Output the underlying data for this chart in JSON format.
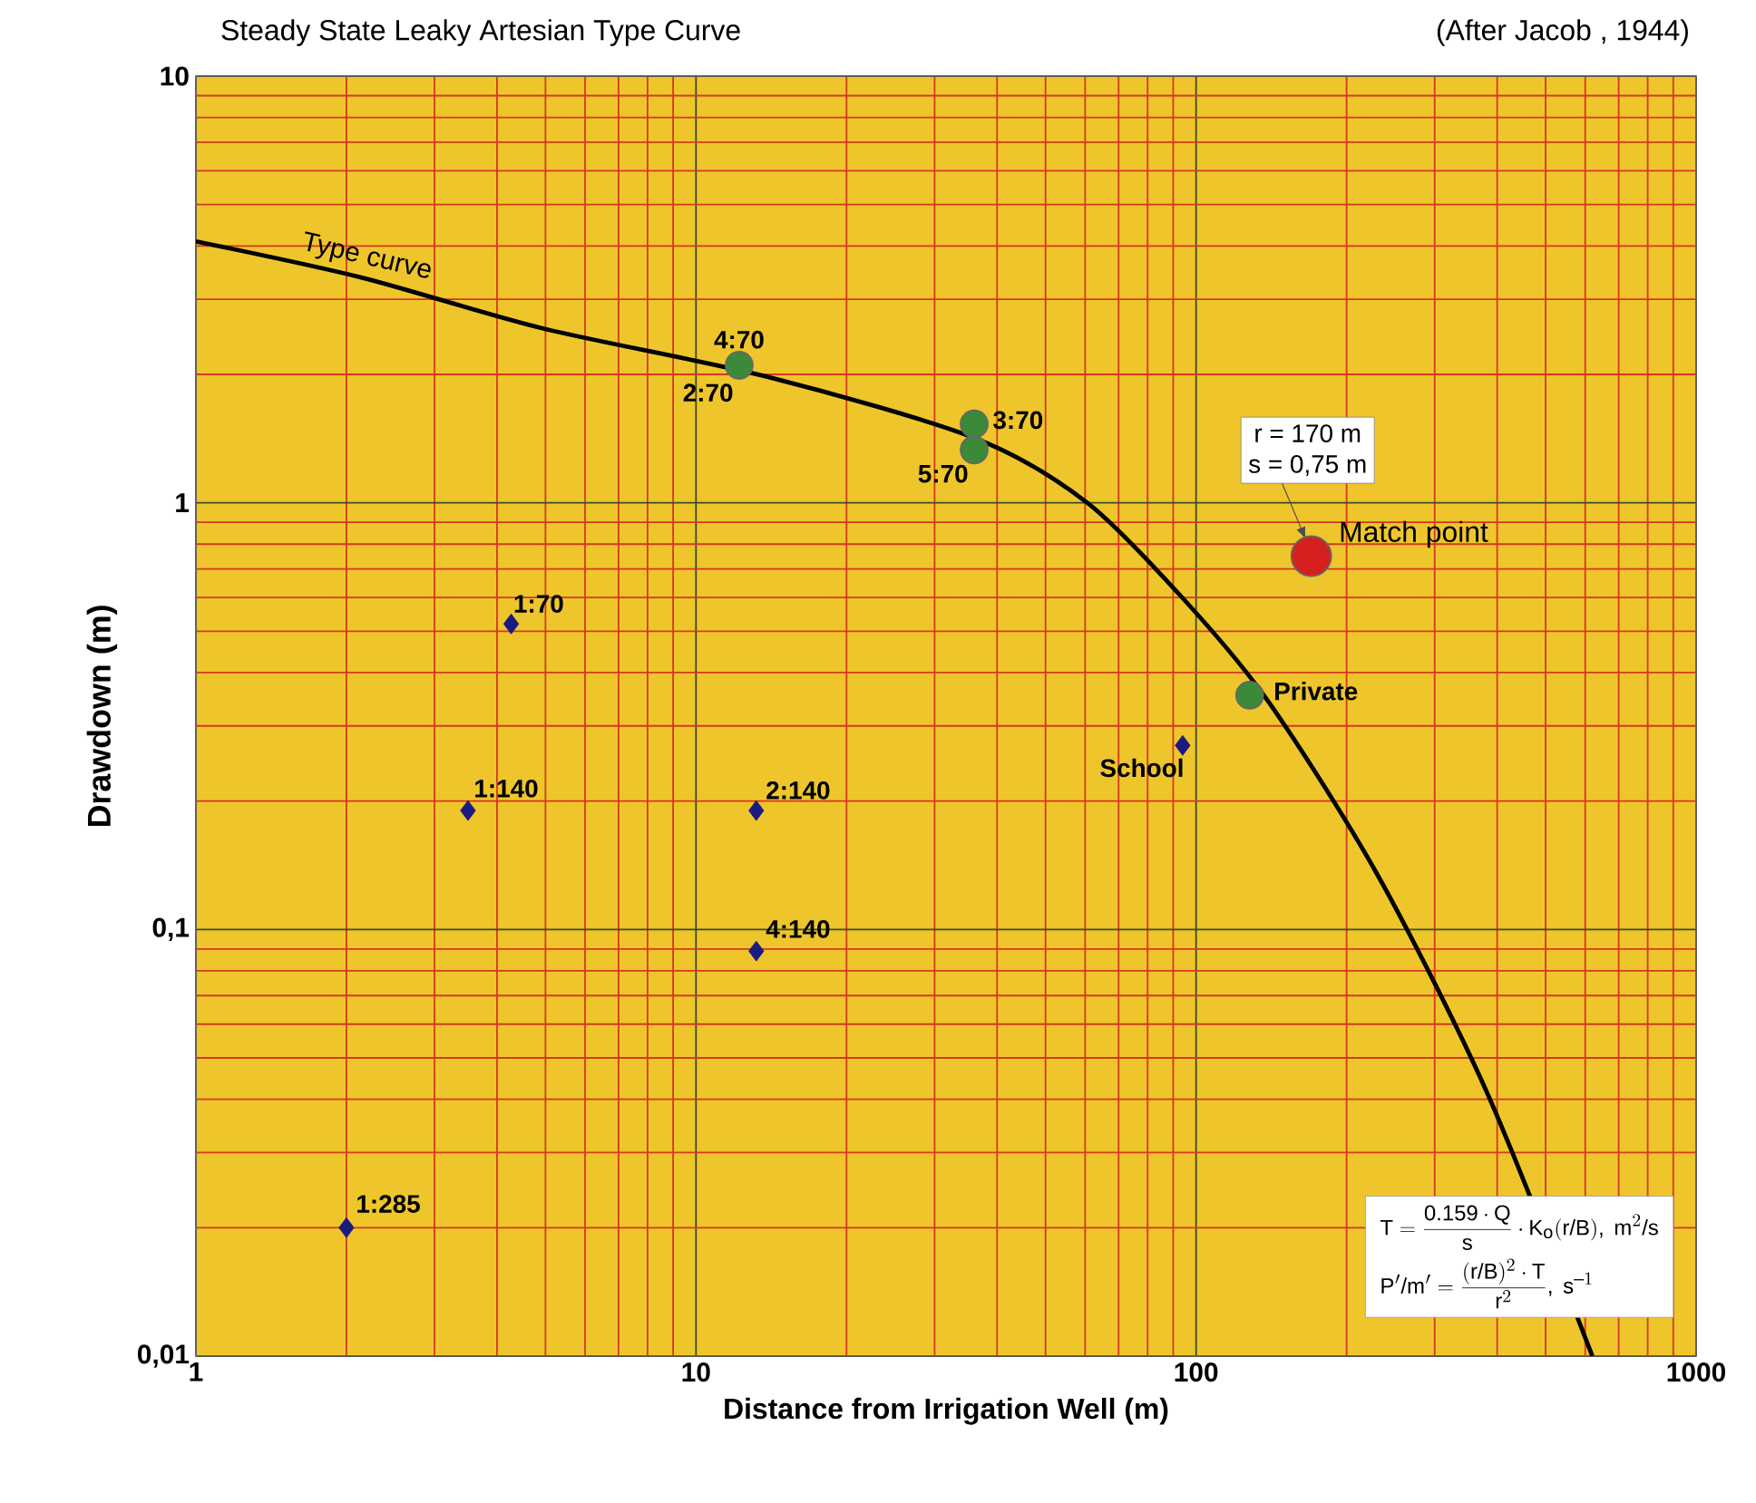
{
  "chart_data": {
    "type": "scatter",
    "title": "Steady State Leaky Artesian Type Curve",
    "subtitle": "(After Jacob , 1944)",
    "xlabel": "Distance from Irrigation Well (m)",
    "ylabel": "Drawdown (m)",
    "log": "xy",
    "grid": true,
    "xlim": [
      1,
      1000
    ],
    "ylim": [
      0.01,
      10
    ],
    "xticks": [
      1,
      {
        "value": 2,
        "label": null
      },
      {
        "value": 3,
        "label": null
      },
      {
        "value": 4,
        "label": null
      },
      {
        "value": 5,
        "label": null
      },
      {
        "value": 6,
        "label": null
      },
      {
        "value": 7,
        "label": null
      },
      {
        "value": 8,
        "label": null
      },
      {
        "value": 9,
        "label": null
      },
      10,
      {
        "value": 20,
        "label": null
      },
      {
        "value": 30,
        "label": null
      },
      {
        "value": 40,
        "label": null
      },
      {
        "value": 50,
        "label": null
      },
      {
        "value": 60,
        "label": null
      },
      {
        "value": 70,
        "label": null
      },
      {
        "value": 80,
        "label": null
      },
      {
        "value": 90,
        "label": null
      },
      100,
      {
        "value": 200,
        "label": null
      },
      {
        "value": 300,
        "label": null
      },
      {
        "value": 400,
        "label": null
      },
      {
        "value": 500,
        "label": null
      },
      {
        "value": 600,
        "label": null
      },
      {
        "value": 700,
        "label": null
      },
      {
        "value": 800,
        "label": null
      },
      {
        "value": 900,
        "label": null
      },
      1000
    ],
    "yticks": [
      {
        "value": 0.01,
        "label": "0,01"
      },
      {
        "value": 0.02,
        "label": null
      },
      {
        "value": 0.03,
        "label": null
      },
      {
        "value": 0.04,
        "label": null
      },
      {
        "value": 0.05,
        "label": null
      },
      {
        "value": 0.06,
        "label": null
      },
      {
        "value": 0.07,
        "label": null
      },
      {
        "value": 0.08,
        "label": null
      },
      {
        "value": 0.09,
        "label": null
      },
      {
        "value": 0.1,
        "label": "0,1"
      },
      {
        "value": 0.2,
        "label": null
      },
      {
        "value": 0.3,
        "label": null
      },
      {
        "value": 0.4,
        "label": null
      },
      {
        "value": 0.5,
        "label": null
      },
      {
        "value": 0.6,
        "label": null
      },
      {
        "value": 0.7,
        "label": null
      },
      {
        "value": 0.8,
        "label": null
      },
      {
        "value": 0.9,
        "label": null
      },
      1,
      {
        "value": 2,
        "label": null
      },
      {
        "value": 3,
        "label": null
      },
      {
        "value": 4,
        "label": null
      },
      {
        "value": 5,
        "label": null
      },
      {
        "value": 6,
        "label": null
      },
      {
        "value": 7,
        "label": null
      },
      {
        "value": 8,
        "label": null
      },
      {
        "value": 9,
        "label": null
      },
      10
    ],
    "series": [
      {
        "name": "Type curve",
        "type": "line",
        "color": "#000000",
        "marker": "none",
        "line_style": "solid",
        "x": [
          1,
          2.15,
          4.96,
          14,
          36,
          60.6,
          95,
          140,
          230,
          380,
          531,
          620
        ],
        "values": [
          4.1,
          3.37,
          2.56,
          1.97,
          1.42,
          1.0,
          0.59,
          0.34,
          0.135,
          0.042,
          null,
          0.01
        ]
      },
      {
        "color": "#3a8a3a",
        "marker": "circle",
        "x": [
          12.2,
          36,
          36,
          128
        ],
        "values": [
          2.1,
          1.53,
          1.33,
          0.354
        ]
      },
      {
        "color": "#1a1a80",
        "marker": "diamond",
        "x": [
          4.27,
          3.5,
          13.2,
          13.2,
          2,
          94
        ],
        "values": [
          0.52,
          0.19,
          0.19,
          0.089,
          0.02,
          0.27
        ]
      },
      {
        "color": "#d62020",
        "marker": "circle",
        "x": [
          170
        ],
        "values": [
          0.75
        ]
      }
    ],
    "annotations": [
      {
        "text": "4:70",
        "x": 12.2,
        "y": 2.1
      },
      {
        "text": "2:70",
        "x": 12.2,
        "y": 2.1
      },
      {
        "text": "3:70",
        "x": 36,
        "y": 1.53
      },
      {
        "text": "5:70",
        "x": 36,
        "y": 1.33
      },
      {
        "text": "1:70",
        "x": 4.27,
        "y": 0.52
      },
      {
        "text": "1:140",
        "x": 3.5,
        "y": 0.19
      },
      {
        "text": "2:140",
        "x": 13.2,
        "y": 0.19
      },
      {
        "text": "4:140",
        "x": 13.2,
        "y": 0.089
      },
      {
        "text": "1:285",
        "x": 2,
        "y": 0.02
      },
      {
        "text": "School",
        "x": 94,
        "y": 0.27
      },
      {
        "text": "Private",
        "x": 128,
        "y": 0.354
      },
      {
        "text": "Match point",
        "x": 170,
        "y": 0.75
      },
      "r = 170 m",
      "s = 0,75 m",
      "T = \\frac{\\mathrm{0.159}\\cdot Q}{s}\\cdot K_{o}(r/B),\\ m^{2}/s",
      "P'/m' = \\frac{(r/B)^{2}\\cdot T}{r^{2}},\\ s^{-1}"
    ]
  }
}
